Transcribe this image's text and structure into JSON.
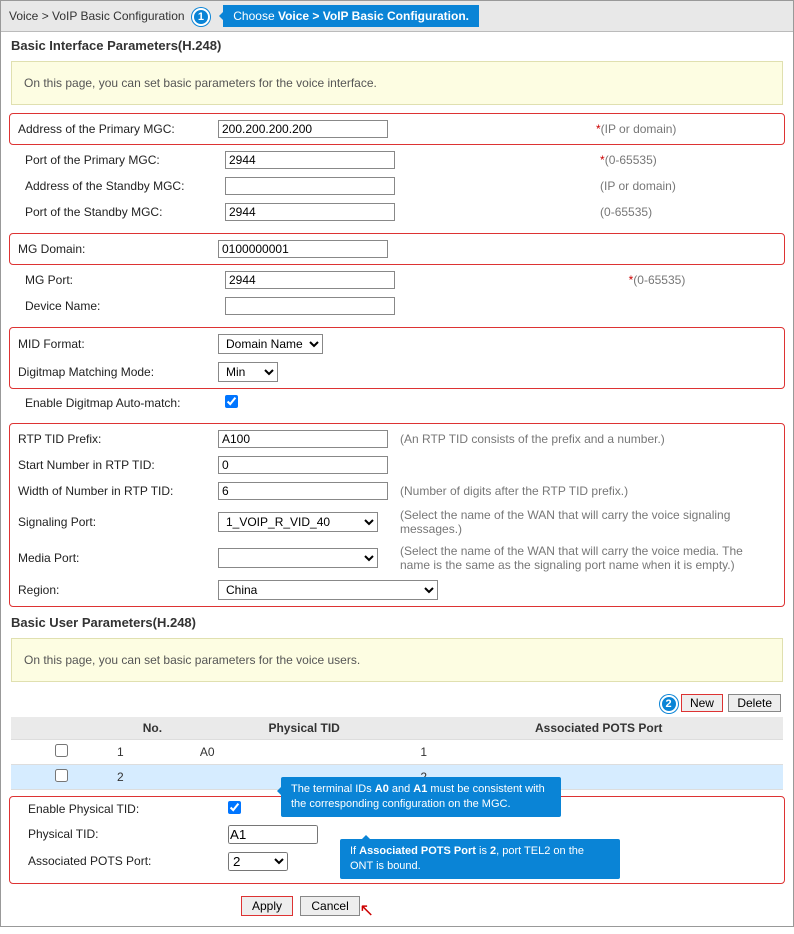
{
  "breadcrumb": "Voice > VoIP Basic Configuration",
  "callout1_html": "Choose <b>Voice > VoIP Basic Configuration.</b>",
  "section1": {
    "title": "Basic Interface Parameters(H.248)",
    "info": "On this page, you can set basic parameters for the voice interface."
  },
  "rows": {
    "primary_mgc_addr": {
      "label": "Address of the Primary MGC:",
      "value": "200.200.200.200",
      "hint": "(IP or domain)",
      "required": true
    },
    "primary_mgc_port": {
      "label": "Port of the Primary MGC:",
      "value": "2944",
      "hint": "(0-65535)",
      "required": true
    },
    "standby_mgc_addr": {
      "label": "Address of the Standby MGC:",
      "value": "",
      "hint": "(IP or domain)",
      "required": false
    },
    "standby_mgc_port": {
      "label": "Port of the Standby MGC:",
      "value": "2944",
      "hint": "(0-65535)",
      "required": false
    },
    "mg_domain": {
      "label": "MG Domain:",
      "value": "0100000001",
      "hint": "",
      "required": false
    },
    "mg_port": {
      "label": "MG Port:",
      "value": "2944",
      "hint": "(0-65535)",
      "required": true
    },
    "device_name": {
      "label": "Device Name:",
      "value": "",
      "hint": "",
      "required": false
    },
    "mid_format": {
      "label": "MID Format:",
      "value": "Domain Name"
    },
    "digitmap_mode": {
      "label": "Digitmap Matching Mode:",
      "value": "Min"
    },
    "auto_match": {
      "label": "Enable Digitmap Auto-match:",
      "checked": true
    },
    "rtp_tid_prefix": {
      "label": "RTP TID Prefix:",
      "value": "A100",
      "hint": "(An RTP TID consists of the prefix and a number.)"
    },
    "rtp_start": {
      "label": "Start Number in RTP TID:",
      "value": "0",
      "hint": ""
    },
    "rtp_width": {
      "label": "Width of Number in RTP TID:",
      "value": "6",
      "hint": "(Number of digits after the RTP TID prefix.)"
    },
    "signaling_port": {
      "label": "Signaling Port:",
      "value": "1_VOIP_R_VID_40",
      "hint": "(Select the name of the WAN that will carry the voice signaling messages.)"
    },
    "media_port": {
      "label": "Media Port:",
      "value": "",
      "hint": "(Select the name of the WAN that will carry the voice media. The name is the same as the signaling port name when it is empty.)"
    },
    "region": {
      "label": "Region:",
      "value": "China"
    }
  },
  "section2": {
    "title": "Basic User Parameters(H.248)",
    "info": "On this page, you can set basic parameters for the voice users."
  },
  "actions": {
    "new": "New",
    "delete": "Delete",
    "apply": "Apply",
    "cancel": "Cancel"
  },
  "table": {
    "headers": {
      "no": "No.",
      "tid": "Physical TID",
      "port": "Associated POTS Port"
    },
    "rows": [
      {
        "no": "1",
        "tid": "A0",
        "port": "1",
        "checked": false,
        "selected": false
      },
      {
        "no": "2",
        "tid": "",
        "port": "2",
        "checked": false,
        "selected": true
      }
    ]
  },
  "bottom": {
    "enable_tid": {
      "label": "Enable Physical TID:",
      "checked": true
    },
    "physical_tid": {
      "label": "Physical TID:",
      "value": "A1"
    },
    "assoc_port": {
      "label": "Associated POTS Port:",
      "value": "2"
    }
  },
  "callout_tid_html": "The terminal IDs <b>A0</b> and <b>A1</b> must be consistent with the corresponding configuration on the MGC.",
  "callout_port_html": "If <b>Associated POTS Port</b> is <b>2</b>, port TEL2 on the ONT is bound.",
  "colors": {
    "accent": "#0a84d6",
    "outline": "#d33",
    "info_bg": "#fdfde2"
  }
}
